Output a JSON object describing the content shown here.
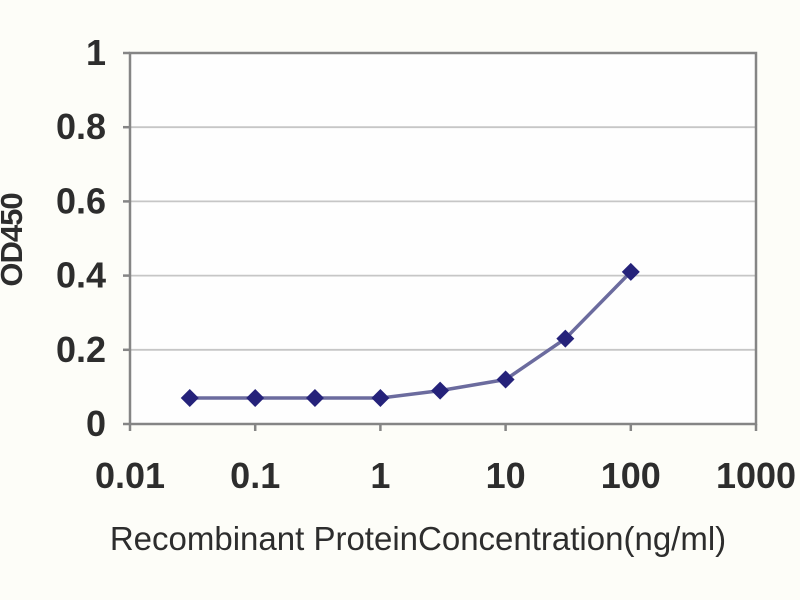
{
  "chart_data": {
    "type": "line",
    "title": "",
    "xlabel": "Recombinant ProteinConcentration(ng/ml)",
    "ylabel": "OD450",
    "x_scale": "log10",
    "xlim": [
      0.01,
      1000
    ],
    "ylim": [
      0,
      1
    ],
    "x_tick_values": [
      0.01,
      0.1,
      1,
      10,
      100,
      1000
    ],
    "x_tick_labels": [
      "0.01",
      "0.1",
      "1",
      "10",
      "100",
      "1000"
    ],
    "y_tick_values": [
      0,
      0.2,
      0.4,
      0.6,
      0.8,
      1
    ],
    "y_tick_labels": [
      "0",
      "0.2",
      "0.4",
      "0.6",
      "0.8",
      "1"
    ],
    "grid": "horizontal-only",
    "legend": "none",
    "series": [
      {
        "name": "OD450",
        "marker": "diamond",
        "x": [
          0.03,
          0.1,
          0.3,
          1,
          3,
          10,
          30,
          100
        ],
        "y": [
          0.07,
          0.07,
          0.07,
          0.07,
          0.09,
          0.12,
          0.23,
          0.41
        ]
      }
    ],
    "colors": {
      "line": "#6b6b9e",
      "marker": "#25227a",
      "gridline": "#c6c6c6",
      "axis_border": "#858585",
      "tick_text": "#2d2d2d",
      "title_text": "#2d2d2d",
      "plot_background": "#fefefe",
      "page_background": "#fdfdf8"
    }
  }
}
